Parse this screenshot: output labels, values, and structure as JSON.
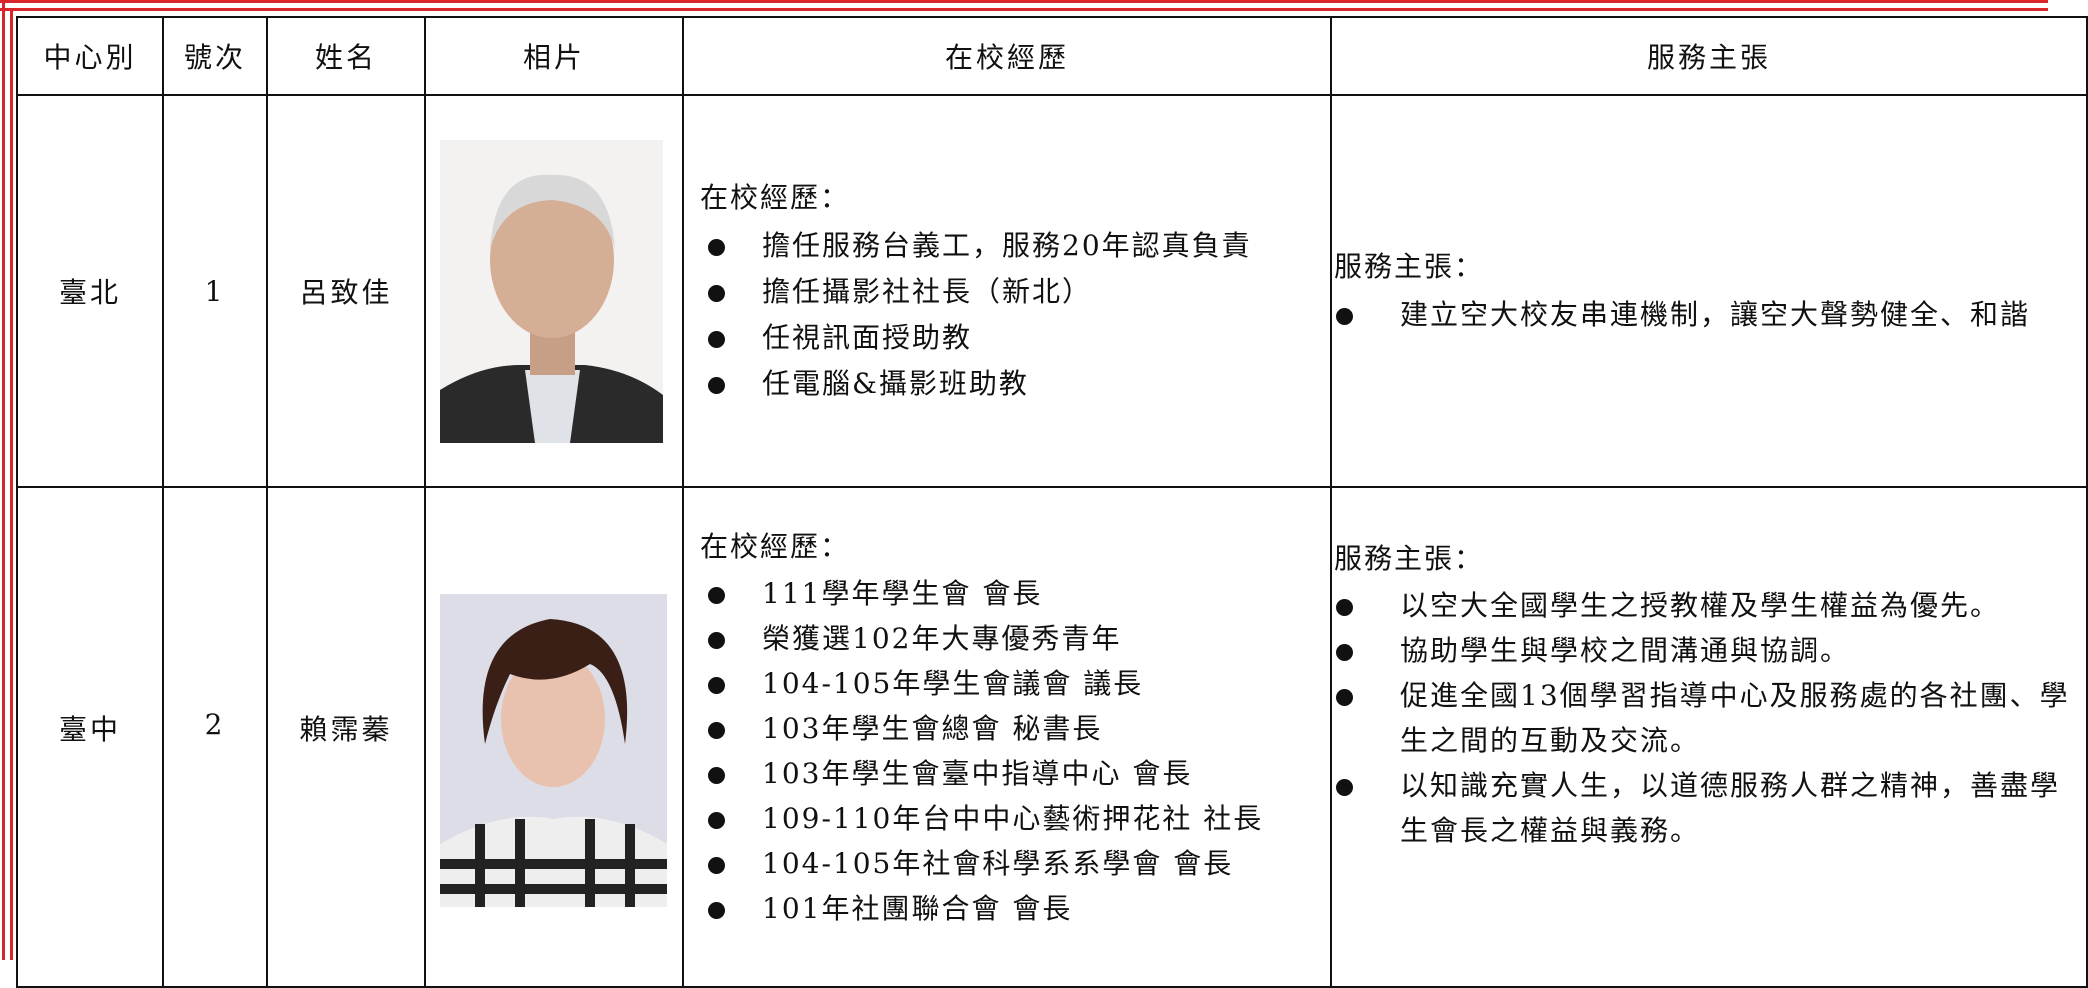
{
  "table": {
    "headers": [
      "中心別",
      "號次",
      "姓名",
      "相片",
      "在校經歷",
      "服務主張"
    ],
    "rows": [
      {
        "center": "臺北",
        "number": "1",
        "name": "呂致佳",
        "experience": {
          "title": "在校經歷：",
          "items": [
            "擔任服務台義工，服務20年認真負責",
            "擔任攝影社社長（新北）",
            "任視訊面授助教",
            "任電腦&攝影班助教"
          ]
        },
        "proposal": {
          "title": "服務主張：",
          "items": [
            "建立空大校友串連機制，讓空大聲勢健全、和諧"
          ]
        }
      },
      {
        "center": "臺中",
        "number": "2",
        "name": "賴霈蓁",
        "experience": {
          "title": "在校經歷：",
          "items": [
            "111學年學生會 會長",
            "榮獲選102年大專優秀青年",
            "104-105年學生會議會 議長",
            "103年學生會總會 秘書長",
            "103年學生會臺中指導中心 會長",
            "109-110年台中中心藝術押花社 社長",
            "104-105年社會科學系系學會 會長",
            "101年社團聯合會 會長"
          ]
        },
        "proposal": {
          "title": "服務主張：",
          "items": [
            "以空大全國學生之授教權及學生權益為優先。",
            "協助學生與學校之間溝通與協調。",
            "促進全國13個學習指導中心及服務處的各社團、學生之間的互動及交流。",
            "以知識充實人生，以道德服務人群之精神，善盡學生會長之權益與義務。"
          ]
        }
      }
    ]
  }
}
